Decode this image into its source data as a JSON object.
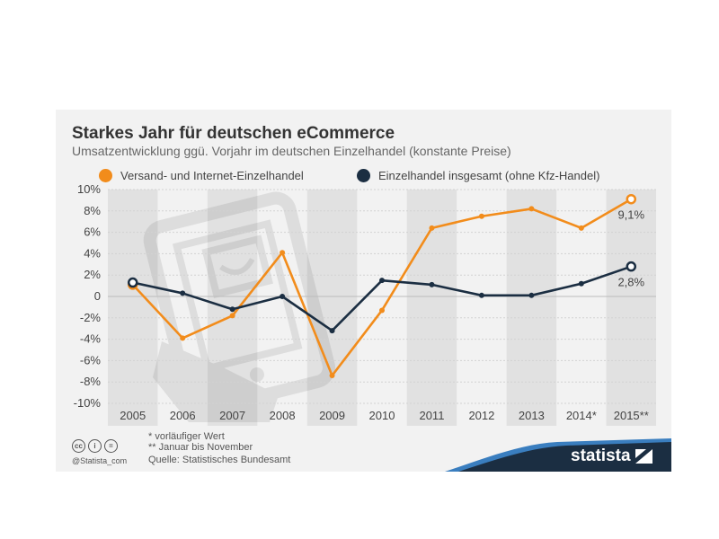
{
  "header": {
    "title": "Starkes Jahr für deutschen eCommerce",
    "subtitle": "Umsatzentwicklung ggü. Vorjahr im deutschen Einzelhandel (konstante Preise)"
  },
  "footer": {
    "note1": "* vorläufiger Wert",
    "note2": "** Januar bis November",
    "source": "Quelle: Statistisches Bundesamt",
    "copyright": "@Statista_com",
    "brand": "statista"
  },
  "chart_data": {
    "type": "line",
    "categories": [
      "2005",
      "2006",
      "2007",
      "2008",
      "2009",
      "2010",
      "2011",
      "2012",
      "2013",
      "2014*",
      "2015**"
    ],
    "series": [
      {
        "name": "Versand- und Internet-Einzelhandel",
        "color": "#f28c1b",
        "values": [
          1.1,
          -3.9,
          -1.8,
          4.1,
          -7.4,
          -1.3,
          6.4,
          7.5,
          8.2,
          6.4,
          9.1
        ],
        "end_label": "9,1%"
      },
      {
        "name": "Einzelhandel insgesamt (ohne Kfz-Handel)",
        "color": "#1b2e42",
        "values": [
          1.3,
          0.3,
          -1.2,
          0.0,
          -3.2,
          1.5,
          1.1,
          0.1,
          0.1,
          1.2,
          2.8
        ],
        "end_label": "2,8%"
      }
    ],
    "y_ticks": [
      "10%",
      "8%",
      "6%",
      "4%",
      "2%",
      "0",
      "-2%",
      "-4%",
      "-6%",
      "-8%",
      "-10%"
    ],
    "ylim": [
      -10,
      10
    ],
    "grid": true,
    "legend_position": "top"
  },
  "colors": {
    "card_bg": "#f2f2f2",
    "band": "#e1e1e1",
    "footer_bar": "#1b2e42",
    "accent_blue": "#3a7ebf"
  }
}
